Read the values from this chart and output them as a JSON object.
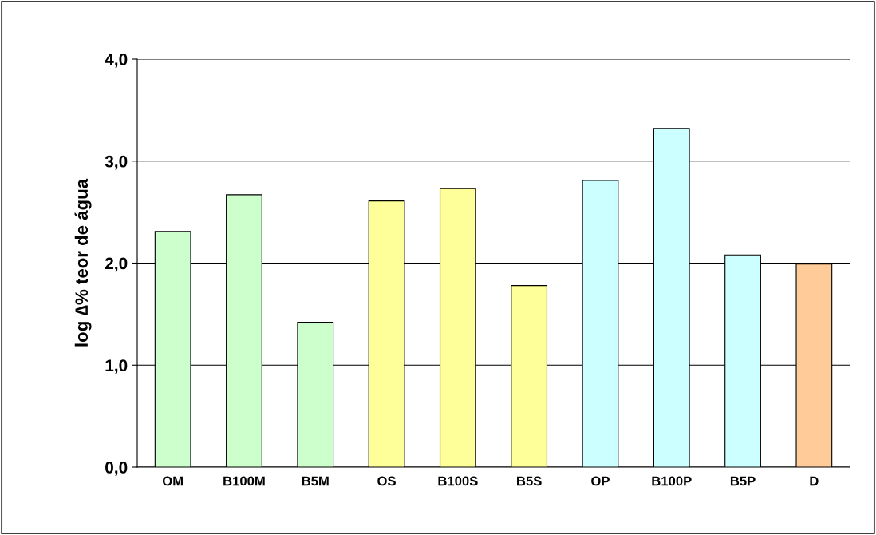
{
  "chart_data": {
    "type": "bar",
    "ylabel": "log ∆% teor de água",
    "categories": [
      "OM",
      "B100M",
      "B5M",
      "OS",
      "B100S",
      "B5S",
      "OP",
      "B100P",
      "B5P",
      "D"
    ],
    "values": [
      2.31,
      2.67,
      1.42,
      2.61,
      2.73,
      1.78,
      2.81,
      3.32,
      2.08,
      1.99
    ],
    "colors": [
      "#ccffcc",
      "#ccffcc",
      "#ccffcc",
      "#ffff99",
      "#ffff99",
      "#ffff99",
      "#ccffff",
      "#ccffff",
      "#ccffff",
      "#ffcc99"
    ],
    "ylim": [
      0,
      4
    ],
    "yticks": [
      {
        "value": 0,
        "label": "0,0"
      },
      {
        "value": 1,
        "label": "1,0"
      },
      {
        "value": 2,
        "label": "2,0"
      },
      {
        "value": 3,
        "label": "3,0"
      },
      {
        "value": 4,
        "label": "4,0"
      }
    ],
    "grid": "y"
  }
}
